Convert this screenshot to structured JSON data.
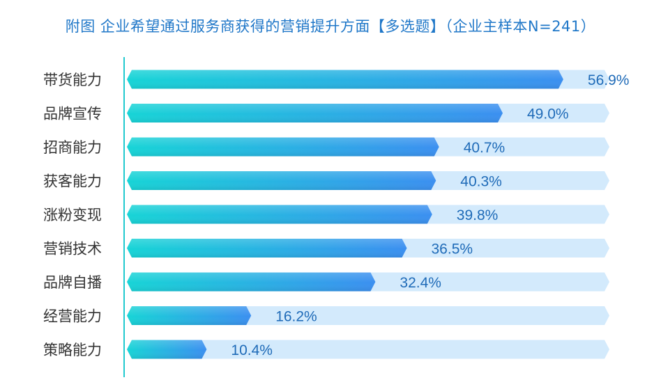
{
  "chart_data": {
    "type": "bar",
    "orientation": "horizontal",
    "title": "附图 企业希望通过服务商获得的营销提升方面【多选题】（企业主样本N=241）",
    "categories": [
      "带货能力",
      "品牌宣传",
      "招商能力",
      "获客能力",
      "涨粉变现",
      "营销技术",
      "品牌自播",
      "经营能力",
      "策略能力"
    ],
    "values": [
      56.9,
      49.0,
      40.7,
      40.3,
      39.8,
      36.5,
      32.4,
      16.2,
      10.4
    ],
    "data_labels": [
      "56.9%",
      "49.0%",
      "40.7%",
      "40.3%",
      "39.8%",
      "36.5%",
      "32.4%",
      "16.2%",
      "10.4%"
    ],
    "unit": "%",
    "xlim": [
      0,
      100
    ],
    "grid": false,
    "legend": "none",
    "colors": {
      "title": "#1f77c8",
      "bar_start": "#17d4d6",
      "bar_end": "#3b8ff0",
      "track": "#d3eafc",
      "axis": "#20c9cf",
      "category_text": "#333333",
      "value_text": "#1f6bb8"
    }
  }
}
